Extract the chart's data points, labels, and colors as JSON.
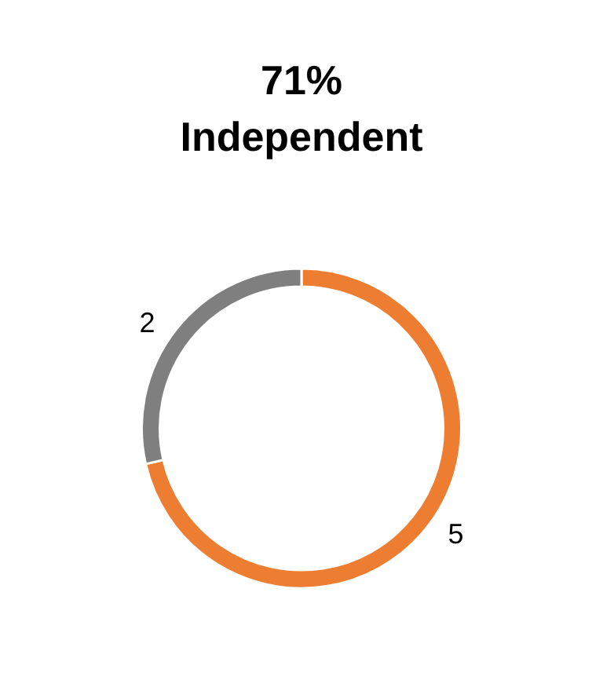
{
  "chart_data": {
    "type": "donut",
    "title": "71%\nIndependent",
    "categories": [
      null,
      null
    ],
    "values": [
      5,
      2
    ],
    "colors": [
      "#ed7d31",
      "#7f7f7f"
    ],
    "data_labels": true
  }
}
